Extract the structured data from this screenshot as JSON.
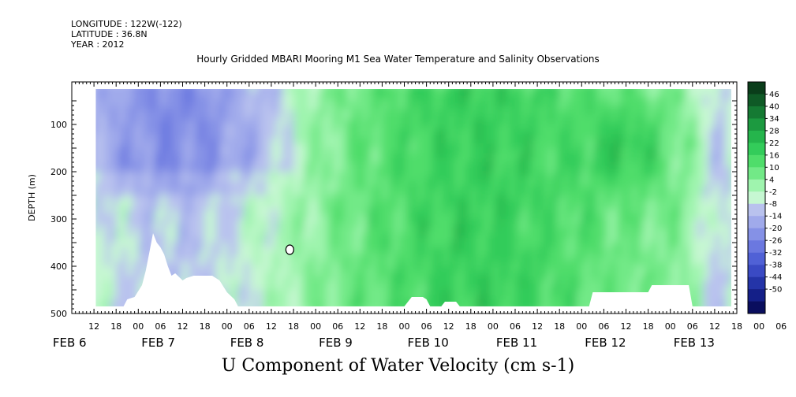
{
  "header": {
    "longitude": "LONGITUDE : 122W(-122)",
    "latitude": "LATITUDE : 36.8N",
    "year": "YEAR : 2012"
  },
  "title": "Hourly Gridded MBARI Mooring M1 Sea Water Temperature and Salinity Observations",
  "bottom_title": "U Component of Water Velocity (cm s-1)",
  "chart_data": {
    "type": "heatmap",
    "title": "Hourly Gridded MBARI Mooring M1 Sea Water Temperature and Salinity Observations",
    "variable": "U Component of Water Velocity (cm s-1)",
    "ylabel": "DEPTH (m)",
    "xlabel": "",
    "y_reversed": true,
    "ylim": [
      500,
      10
    ],
    "y_ticks": [
      100,
      200,
      300,
      400,
      500
    ],
    "x_range_hours": [
      0,
      180
    ],
    "x_hour_ticks": [
      "12",
      "18",
      "00",
      "06",
      "12",
      "18",
      "00",
      "06",
      "12",
      "18",
      "00",
      "06",
      "12",
      "18",
      "00",
      "06",
      "12",
      "18",
      "00",
      "06",
      "12",
      "18",
      "00",
      "06",
      "12",
      "18",
      "00",
      "06",
      "12",
      "18",
      "00",
      "06"
    ],
    "x_day_labels": [
      "FEB  6",
      "FEB  7",
      "FEB  8",
      "FEB  9",
      "FEB 10",
      "FEB 11",
      "FEB 12",
      "FEB 13"
    ],
    "colorbar_levels": [
      "46",
      "40",
      "34",
      "28",
      "22",
      "16",
      "10",
      "4",
      "-2",
      "-8",
      "-14",
      "-20",
      "-26",
      "-32",
      "-38",
      "-44",
      "-50"
    ],
    "colorbar_colors": [
      "#0a3d1a",
      "#0f5a26",
      "#157a33",
      "#1c9a40",
      "#25b54c",
      "#33cc5a",
      "#4fdd6a",
      "#72e987",
      "#9ff4ae",
      "#c6f7d2",
      "#b9c2ee",
      "#a0aaeb",
      "#8591e6",
      "#6b78e0",
      "#5061d6",
      "#3a4ac4",
      "#2434a8",
      "#141f88",
      "#0a0e5e"
    ]
  }
}
